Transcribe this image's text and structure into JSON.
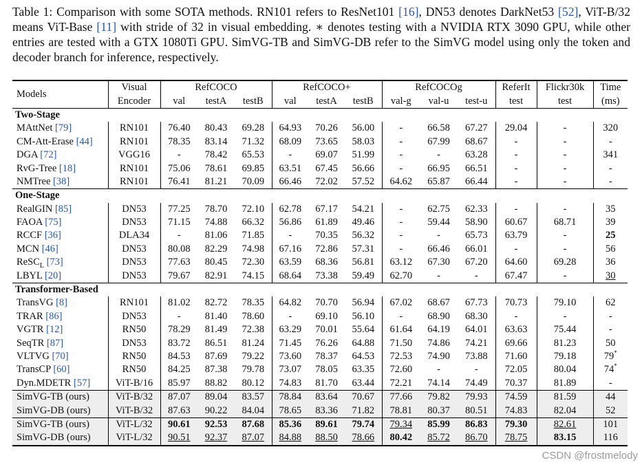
{
  "caption": [
    "Table 1: Comparison with some SOTA methods. RN101 refers to ResNet101 ",
    "[16]",
    ", DN53 denotes DarkNet53 ",
    "[52]",
    ", ViT-B/32 means ViT-Base ",
    "[11]",
    " with stride of 32 in visual embedding. ∗ denotes testing with a NVIDIA RTX 3090 GPU, while other entries are tested with a GTX 1080Ti GPU. SimVG-TB and SimVG-DB refer to the SimVG model using only the token and decoder branch for inference, respectively."
  ],
  "header": {
    "models": "Models",
    "encoder": [
      "Visual",
      "Encoder"
    ],
    "groups": [
      {
        "name": "RefCOCO",
        "columns": [
          "val",
          "testA",
          "testB"
        ]
      },
      {
        "name": "RefCOCO+",
        "columns": [
          "val",
          "testA",
          "testB"
        ]
      },
      {
        "name": "RefCOCOg",
        "columns": [
          "val-g",
          "val-u",
          "test-u"
        ]
      },
      {
        "name": "ReferIt",
        "columns": [
          "test"
        ]
      },
      {
        "name": "Flickr30k",
        "columns": [
          "test"
        ]
      }
    ],
    "time": [
      "Time",
      "(ms)"
    ]
  },
  "sections": [
    {
      "title": "Two-Stage",
      "rows": [
        {
          "model": "MAttNet",
          "cite": "[79]",
          "encoder": "RN101",
          "cells": [
            "76.40",
            "80.43",
            "69.28",
            "64.93",
            "70.26",
            "56.00",
            "-",
            "66.58",
            "67.27",
            "29.04",
            "-",
            "320"
          ]
        },
        {
          "model": "CM-Att-Erase",
          "cite": "[44]",
          "encoder": "RN101",
          "cells": [
            "78.35",
            "83.14",
            "71.32",
            "68.09",
            "73.65",
            "58.03",
            "-",
            "67.99",
            "68.67",
            "-",
            "-",
            "-"
          ]
        },
        {
          "model": "DGA",
          "cite": "[72]",
          "encoder": "VGG16",
          "cells": [
            "-",
            "78.42",
            "65.53",
            "-",
            "69.07",
            "51.99",
            "-",
            "-",
            "63.28",
            "-",
            "-",
            "341"
          ]
        },
        {
          "model": "RvG-Tree",
          "cite": "[18]",
          "encoder": "RN101",
          "cells": [
            "75.06",
            "78.61",
            "69.85",
            "63.51",
            "67.45",
            "56.66",
            "-",
            "66.95",
            "66.51",
            "-",
            "-",
            "-"
          ]
        },
        {
          "model": "NMTree",
          "cite": "[38]",
          "encoder": "RN101",
          "cells": [
            "76.41",
            "81.21",
            "70.09",
            "66.46",
            "72.02",
            "57.52",
            "64.62",
            "65.87",
            "66.44",
            "-",
            "-",
            "-"
          ]
        }
      ]
    },
    {
      "title": "One-Stage",
      "rows": [
        {
          "model": "RealGIN",
          "cite": "[85]",
          "encoder": "DN53",
          "cells": [
            "77.25",
            "78.70",
            "72.10",
            "62.78",
            "67.17",
            "54.21",
            "-",
            "62.75",
            "62.33",
            "-",
            "-",
            "35"
          ]
        },
        {
          "model": "FAOA",
          "cite": "[75]",
          "encoder": "DN53",
          "cells": [
            "71.15",
            "74.88",
            "66.32",
            "56.86",
            "61.89",
            "49.46",
            "-",
            "59.44",
            "58.90",
            "60.67",
            "68.71",
            "39"
          ]
        },
        {
          "model": "RCCF",
          "cite": "[36]",
          "encoder": "DLA34",
          "cells": [
            "-",
            "81.06",
            "71.85",
            "-",
            "70.35",
            "56.32",
            "-",
            "-",
            "65.73",
            "63.79",
            "-",
            "25"
          ],
          "bold": [
            11
          ]
        },
        {
          "model": "MCN",
          "cite": "[46]",
          "encoder": "DN53",
          "cells": [
            "80.08",
            "82.29",
            "74.98",
            "67.16",
            "72.86",
            "57.31",
            "-",
            "66.46",
            "66.01",
            "-",
            "-",
            "56"
          ]
        },
        {
          "model": "ReSC",
          "model_sub": "L",
          "cite": "[73]",
          "encoder": "DN53",
          "cells": [
            "77.63",
            "80.45",
            "72.30",
            "63.59",
            "68.36",
            "56.81",
            "63.12",
            "67.30",
            "67.20",
            "64.60",
            "69.28",
            "36"
          ]
        },
        {
          "model": "LBYL",
          "cite": "[20]",
          "encoder": "DN53",
          "cells": [
            "79.67",
            "82.91",
            "74.15",
            "68.64",
            "73.38",
            "59.49",
            "62.70",
            "-",
            "-",
            "67.47",
            "-",
            "30"
          ],
          "underline": [
            11
          ]
        }
      ]
    },
    {
      "title": "Transformer-Based",
      "rows": [
        {
          "model": "TransVG",
          "cite": "[8]",
          "encoder": "RN101",
          "cells": [
            "81.02",
            "82.72",
            "78.35",
            "64.82",
            "70.70",
            "56.94",
            "67.02",
            "68.67",
            "67.73",
            "70.73",
            "79.10",
            "62"
          ]
        },
        {
          "model": "TRAR",
          "cite": "[86]",
          "encoder": "DN53",
          "cells": [
            "-",
            "81.40",
            "78.60",
            "-",
            "69.10",
            "56.10",
            "-",
            "68.90",
            "68.30",
            "-",
            "-",
            "-"
          ]
        },
        {
          "model": "VGTR",
          "cite": "[12]",
          "encoder": "RN50",
          "cells": [
            "78.29",
            "81.49",
            "72.38",
            "63.29",
            "70.01",
            "55.64",
            "61.64",
            "64.19",
            "64.01",
            "63.63",
            "75.44",
            "-"
          ]
        },
        {
          "model": "SeqTR",
          "cite": "[87]",
          "encoder": "DN53",
          "cells": [
            "83.72",
            "86.51",
            "81.24",
            "71.45",
            "76.26",
            "64.88",
            "71.50",
            "74.86",
            "74.21",
            "69.66",
            "81.23",
            "50"
          ]
        },
        {
          "model": "VLTVG",
          "cite": "[70]",
          "encoder": "RN50",
          "cells": [
            "84.53",
            "87.69",
            "79.22",
            "73.60",
            "78.37",
            "64.53",
            "72.53",
            "74.90",
            "73.88",
            "71.60",
            "79.18",
            {
              "text": "79",
              "sup": "*"
            }
          ]
        },
        {
          "model": "TransCP",
          "cite": "[60]",
          "encoder": "RN50",
          "cells": [
            "84.25",
            "87.38",
            "79.78",
            "73.07",
            "78.05",
            "63.35",
            "72.60",
            "-",
            "-",
            "72.05",
            "80.04",
            {
              "text": "74",
              "sup": "*"
            }
          ]
        },
        {
          "model": "Dyn.MDETR",
          "cite": "[57]",
          "encoder": "ViT-B/16",
          "cells": [
            "85.97",
            "88.82",
            "80.12",
            "74.83",
            "81.70",
            "63.44",
            "72.21",
            "74.14",
            "74.49",
            "70.37",
            "81.89",
            "-"
          ]
        }
      ]
    },
    {
      "shaded": true,
      "rows": [
        {
          "model": "SimVG-TB (ours)",
          "encoder": "ViT-B/32",
          "cells": [
            "87.07",
            "89.04",
            "83.57",
            "78.84",
            "83.64",
            "70.67",
            "77.66",
            "79.82",
            "79.93",
            "74.59",
            "81.59",
            "44"
          ]
        },
        {
          "model": "SimVG-DB (ours)",
          "encoder": "ViT-B/32",
          "cells": [
            "87.63",
            "90.22",
            "84.04",
            "78.65",
            "83.36",
            "71.82",
            "78.81",
            "80.37",
            "80.51",
            "74.83",
            "82.04",
            "52"
          ]
        }
      ]
    },
    {
      "shaded": true,
      "rows": [
        {
          "model": "SimVG-TB (ours)",
          "encoder": "ViT-L/32",
          "cells": [
            "90.61",
            "92.53",
            "87.68",
            "85.36",
            "89.61",
            "79.74",
            "79.34",
            "85.99",
            "86.83",
            "79.30",
            "82.61",
            "101"
          ],
          "bold": [
            0,
            1,
            2,
            3,
            4,
            5,
            7,
            8,
            9
          ],
          "underline": [
            6,
            10
          ]
        },
        {
          "model": "SimVG-DB (ours)",
          "encoder": "ViT-L/32",
          "cells": [
            "90.51",
            "92.37",
            "87.07",
            "84.88",
            "88.50",
            "78.66",
            "80.42",
            "85.72",
            "86.70",
            "78.75",
            "83.15",
            "116"
          ],
          "bold": [
            6,
            10
          ],
          "underline": [
            0,
            1,
            2,
            3,
            4,
            5,
            7,
            8,
            9
          ]
        }
      ]
    }
  ],
  "watermark": "CSDN @frostmelody"
}
